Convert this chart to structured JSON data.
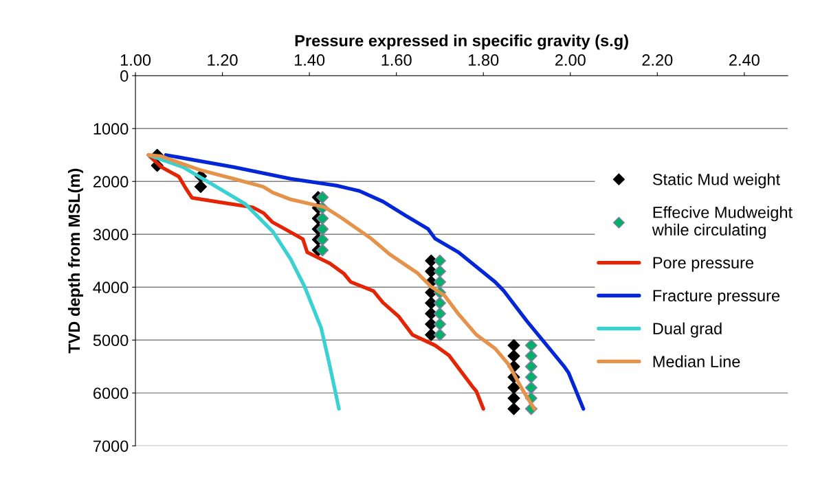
{
  "chart_data": {
    "type": "line",
    "xlabel": "Pressure expressed in specific gravity (s.g)",
    "ylabel": "TVD depth from MSL(m)",
    "xlim": [
      1.0,
      2.5
    ],
    "xticks": [
      {
        "value": 1.0,
        "label": "1.00"
      },
      {
        "value": 1.2,
        "label": "1.20"
      },
      {
        "value": 1.4,
        "label": "1.40"
      },
      {
        "value": 1.6,
        "label": "1.60"
      },
      {
        "value": 1.8,
        "label": "1.80"
      },
      {
        "value": 2.0,
        "label": "2.00"
      },
      {
        "value": 2.2,
        "label": "2.20"
      },
      {
        "value": 2.4,
        "label": "2.40"
      }
    ],
    "ylim": [
      7000,
      0
    ],
    "yticks": [
      0,
      1000,
      2000,
      3000,
      4000,
      5000,
      6000,
      7000
    ],
    "grid": "y",
    "legend": "right",
    "series": [
      {
        "name": "Static Mud weight",
        "type": "scatter",
        "marker": "diamond",
        "color": "#000000",
        "x": [
          1.05,
          1.05,
          1.15,
          1.15,
          1.42,
          1.42,
          1.42,
          1.42,
          1.42,
          1.42,
          1.68,
          1.68,
          1.68,
          1.68,
          1.68,
          1.68,
          1.68,
          1.68,
          1.87,
          1.87,
          1.87,
          1.87,
          1.87,
          1.87,
          1.87
        ],
        "values": [
          1500,
          1700,
          1900,
          2100,
          2300,
          2500,
          2700,
          2900,
          3100,
          3300,
          3500,
          3700,
          3900,
          4100,
          4300,
          4500,
          4700,
          4900,
          5100,
          5300,
          5500,
          5700,
          5900,
          6100,
          6300
        ]
      },
      {
        "name": "Effecive Mudweight while circulating",
        "type": "scatter",
        "marker": "diamond",
        "color": "#00b16a",
        "x": [
          1.43,
          1.43,
          1.43,
          1.43,
          1.43,
          1.43,
          1.7,
          1.7,
          1.7,
          1.7,
          1.7,
          1.7,
          1.7,
          1.7,
          1.91,
          1.91,
          1.91,
          1.91,
          1.91,
          1.91,
          1.91
        ],
        "values": [
          2300,
          2500,
          2700,
          2900,
          3100,
          3300,
          3500,
          3700,
          3900,
          4100,
          4300,
          4500,
          4700,
          4900,
          5100,
          5300,
          5500,
          5700,
          5900,
          6100,
          6300
        ]
      },
      {
        "name": "Pore pressure",
        "color": "#e42505",
        "x": [
          1.03,
          1.06,
          1.1,
          1.115,
          1.13,
          1.2,
          1.27,
          1.295,
          1.315,
          1.357,
          1.385,
          1.395,
          1.447,
          1.479,
          1.495,
          1.547,
          1.569,
          1.605,
          1.637,
          1.689,
          1.721,
          1.775,
          1.784,
          1.8
        ],
        "values": [
          1500,
          1730,
          1910,
          2120,
          2310,
          2400,
          2490,
          2600,
          2770,
          2960,
          3090,
          3340,
          3550,
          3740,
          3900,
          4070,
          4290,
          4550,
          4900,
          5100,
          5290,
          5880,
          5970,
          6300
        ]
      },
      {
        "name": "Fracture pressure",
        "color": "#0326d6",
        "x": [
          1.07,
          1.226,
          1.357,
          1.463,
          1.515,
          1.569,
          1.62,
          1.673,
          1.689,
          1.743,
          1.827,
          1.847,
          1.9,
          1.985,
          1.996,
          2.03
        ],
        "values": [
          1500,
          1730,
          1950,
          2080,
          2180,
          2380,
          2640,
          2900,
          3080,
          3340,
          3900,
          4070,
          4640,
          5490,
          5620,
          6300
        ]
      },
      {
        "name": "Dual grad",
        "color": "#3ad1d3",
        "x": [
          1.03,
          1.11,
          1.2,
          1.253,
          1.316,
          1.357,
          1.389,
          1.427,
          1.447,
          1.468
        ],
        "values": [
          1500,
          1730,
          2170,
          2430,
          2950,
          3470,
          3990,
          4770,
          5490,
          6300
        ]
      },
      {
        "name": "Median Line",
        "color": "#e5924a",
        "x": [
          1.03,
          1.057,
          1.147,
          1.226,
          1.294,
          1.316,
          1.357,
          1.436,
          1.474,
          1.542,
          1.585,
          1.648,
          1.68,
          1.711,
          1.743,
          1.784,
          1.827,
          1.858,
          1.89,
          1.917
        ],
        "values": [
          1500,
          1520,
          1780,
          1950,
          2100,
          2210,
          2340,
          2490,
          2690,
          3080,
          3380,
          3730,
          3990,
          4160,
          4510,
          4900,
          5160,
          5460,
          5940,
          6300
        ]
      }
    ]
  }
}
